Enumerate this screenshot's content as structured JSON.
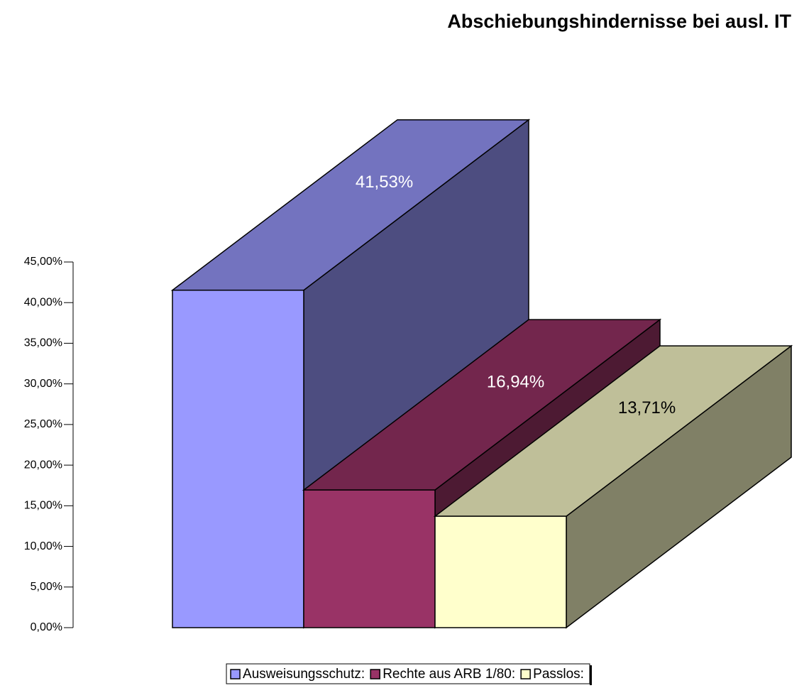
{
  "chart_data": {
    "type": "bar3d",
    "title": "Abschiebungshindernisse bei ausl. IT",
    "categories": [
      "Ausweisungsschutz:",
      "Rechte aus ARB 1/80:",
      "Passlos:"
    ],
    "values": [
      41.53,
      16.94,
      13.71
    ],
    "value_labels": [
      "41,53%",
      "16,94%",
      "13,71%"
    ],
    "colors": [
      "#9999ff",
      "#993366",
      "#ffffcc"
    ],
    "ylim": [
      0,
      45
    ],
    "yticks": [
      {
        "value": 0,
        "label": "0,00%"
      },
      {
        "value": 5,
        "label": "5,00%"
      },
      {
        "value": 10,
        "label": "10,00%"
      },
      {
        "value": 15,
        "label": "15,00%"
      },
      {
        "value": 20,
        "label": "20,00%"
      },
      {
        "value": 25,
        "label": "25,00%"
      },
      {
        "value": 30,
        "label": "30,00%"
      },
      {
        "value": 35,
        "label": "35,00%"
      },
      {
        "value": 40,
        "label": "40,00%"
      },
      {
        "value": 45,
        "label": "45,00%"
      }
    ],
    "legend": "bottom"
  }
}
